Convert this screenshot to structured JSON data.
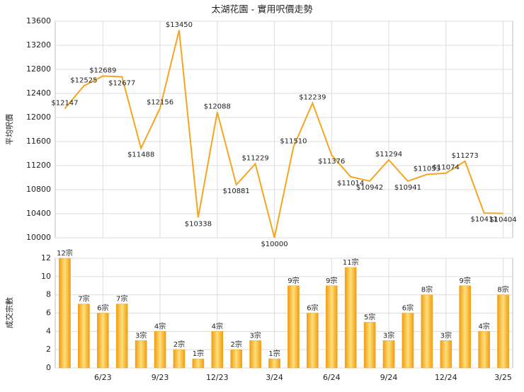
{
  "chart_data": [
    {
      "type": "line",
      "title": "太湖花園 - 實用呎價走勢",
      "y_label": "平均呎價",
      "color": "#f5a51e",
      "values": [
        12147,
        12525,
        12689,
        12677,
        11488,
        12156,
        13450,
        10338,
        12088,
        10881,
        11229,
        10000,
        11510,
        12239,
        11376,
        11014,
        10942,
        11294,
        10941,
        11053,
        11074,
        11273,
        10411,
        10404
      ],
      "value_labels": [
        "$12147",
        "$12525",
        "$12689",
        "$12677",
        "$11488",
        "$12156",
        "$13450",
        "$10338",
        "$12088",
        "$10881",
        "$11229",
        "$10000",
        "$11510",
        "$12239",
        "$11376",
        "$11014",
        "$10942",
        "$11294",
        "$10941",
        "$11053",
        "$11074",
        "$11273",
        "$10411",
        "$10404"
      ],
      "ylim": [
        10000,
        13600
      ],
      "yticks": [
        10000,
        10400,
        10800,
        11200,
        11600,
        12000,
        12400,
        12800,
        13200,
        13600
      ],
      "grid": true
    },
    {
      "type": "bar",
      "y_label": "成交宗數",
      "color": "#f5a51e",
      "categories": [
        null,
        null,
        "6/23",
        null,
        null,
        "9/23",
        null,
        null,
        "12/23",
        null,
        null,
        "3/24",
        null,
        null,
        "6/24",
        null,
        null,
        "9/24",
        null,
        null,
        "12/24",
        null,
        null,
        "3/25"
      ],
      "values": [
        12,
        7,
        6,
        7,
        3,
        4,
        2,
        1,
        4,
        2,
        3,
        1,
        9,
        6,
        9,
        11,
        5,
        3,
        6,
        8,
        3,
        9,
        4,
        8
      ],
      "value_labels": [
        "12宗",
        "7宗",
        "6宗",
        "7宗",
        "3宗",
        "4宗",
        "2宗",
        "1宗",
        "4宗",
        "2宗",
        "3宗",
        "1宗",
        "9宗",
        "6宗",
        "9宗",
        "11宗",
        "5宗",
        "3宗",
        "6宗",
        "8宗",
        "3宗",
        "9宗",
        "4宗",
        "8宗"
      ],
      "ylim": [
        0,
        12
      ],
      "yticks": [
        0,
        2,
        4,
        6,
        8,
        10,
        12
      ],
      "grid": true
    }
  ]
}
